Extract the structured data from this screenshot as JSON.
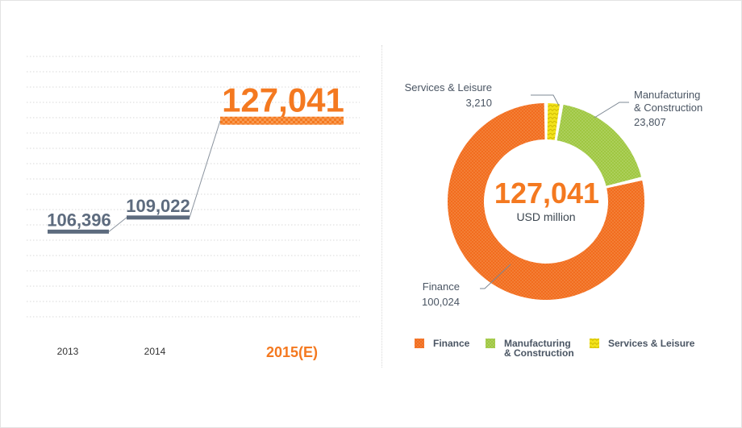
{
  "chart_data": [
    {
      "type": "line",
      "categories": [
        "2013",
        "2014",
        "2015(E)"
      ],
      "values": [
        106396,
        109022,
        127041
      ],
      "value_labels": [
        "106,396",
        "109,022",
        "127,041"
      ],
      "highlight_index": 2,
      "grid": true,
      "colors": {
        "normal": "#5d6b7e",
        "highlight": "#f47920",
        "grid": "#d9d9d9"
      }
    },
    {
      "type": "pie",
      "donut": true,
      "center_value": "127,041",
      "center_unit": "USD million",
      "slices": [
        {
          "name": "Services & Leisure",
          "value": 3210,
          "label": "3,210",
          "color": "#f2e21a"
        },
        {
          "name": "Manufacturing\n& Construction",
          "value": 23807,
          "label": "23,807",
          "color": "#9dc63e"
        },
        {
          "name": "Finance",
          "value": 100024,
          "label": "100,024",
          "color": "#f26a1b"
        }
      ],
      "legend_placement": "bottom",
      "legend": [
        {
          "name": "Finance",
          "color": "#f26a1b"
        },
        {
          "name": "Manufacturing\n& Construction",
          "color": "#9dc63e"
        },
        {
          "name": "Services & Leisure",
          "color": "#f2e21a"
        }
      ]
    }
  ]
}
